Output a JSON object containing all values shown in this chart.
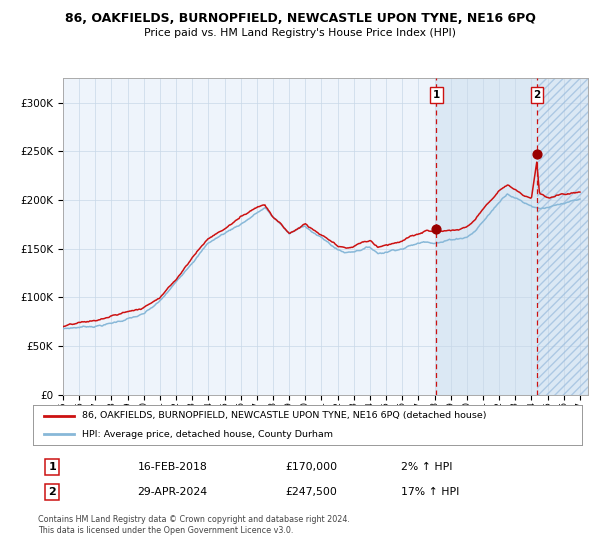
{
  "title": "86, OAKFIELDS, BURNOPFIELD, NEWCASTLE UPON TYNE, NE16 6PQ",
  "subtitle": "Price paid vs. HM Land Registry's House Price Index (HPI)",
  "legend_line1": "86, OAKFIELDS, BURNOPFIELD, NEWCASTLE UPON TYNE, NE16 6PQ (detached house)",
  "legend_line2": "HPI: Average price, detached house, County Durham",
  "ann1_date": "16-FEB-2018",
  "ann1_price": "£170,000",
  "ann1_pct": "2% ↑ HPI",
  "ann2_date": "29-APR-2024",
  "ann2_price": "£247,500",
  "ann2_pct": "17% ↑ HPI",
  "footer": "Contains HM Land Registry data © Crown copyright and database right 2024.\nThis data is licensed under the Open Government Licence v3.0.",
  "hpi_color": "#88b8d8",
  "price_color": "#cc1111",
  "marker_color": "#990000",
  "vline_color": "#cc1111",
  "plot_bg": "#eef4fb",
  "ylim": [
    0,
    325000
  ],
  "yticks": [
    0,
    50000,
    100000,
    150000,
    200000,
    250000,
    300000
  ],
  "xlim_start": 1995.0,
  "xlim_end": 2027.5,
  "sale1_x": 2018.12,
  "sale1_y": 170000,
  "sale2_x": 2024.33,
  "sale2_y": 247500,
  "hpi_keypoints_x": [
    1995.0,
    1996.0,
    1997.0,
    1998.0,
    1999.0,
    2000.0,
    2001.0,
    2002.0,
    2003.0,
    2004.0,
    2005.0,
    2006.0,
    2007.0,
    2007.5,
    2008.0,
    2008.5,
    2009.0,
    2009.5,
    2010.0,
    2010.5,
    2011.0,
    2011.5,
    2012.0,
    2012.5,
    2013.0,
    2013.5,
    2014.0,
    2014.5,
    2015.0,
    2015.5,
    2016.0,
    2016.5,
    2017.0,
    2017.5,
    2018.0,
    2018.5,
    2019.0,
    2019.5,
    2020.0,
    2020.5,
    2021.0,
    2021.5,
    2022.0,
    2022.5,
    2023.0,
    2023.5,
    2024.0,
    2024.5,
    2025.0,
    2025.5,
    2026.0,
    2026.5,
    2027.0
  ],
  "hpi_keypoints_y": [
    68000,
    70000,
    72000,
    75000,
    80000,
    84000,
    96000,
    115000,
    138000,
    158000,
    168000,
    178000,
    190000,
    195000,
    185000,
    178000,
    168000,
    172000,
    176000,
    170000,
    164000,
    158000,
    152000,
    149000,
    151000,
    154000,
    156000,
    150000,
    152000,
    155000,
    157000,
    160000,
    162000,
    165000,
    165000,
    166000,
    168000,
    170000,
    172000,
    178000,
    188000,
    198000,
    208000,
    218000,
    215000,
    210000,
    207000,
    205000,
    207000,
    208000,
    209000,
    210000,
    211000
  ],
  "price_keypoints_x": [
    1995.0,
    1996.0,
    1997.0,
    1998.0,
    1999.0,
    2000.0,
    2001.0,
    2002.0,
    2003.0,
    2004.0,
    2005.0,
    2006.0,
    2007.0,
    2007.5,
    2008.0,
    2008.5,
    2009.0,
    2009.5,
    2010.0,
    2010.5,
    2011.0,
    2011.5,
    2012.0,
    2012.5,
    2013.0,
    2013.5,
    2014.0,
    2014.5,
    2015.0,
    2015.5,
    2016.0,
    2016.5,
    2017.0,
    2017.5,
    2018.0,
    2018.12,
    2018.5,
    2019.0,
    2019.5,
    2020.0,
    2020.5,
    2021.0,
    2021.5,
    2022.0,
    2022.5,
    2023.0,
    2023.5,
    2024.0,
    2024.33,
    2024.5,
    2025.0,
    2025.5,
    2026.0,
    2026.5,
    2027.0
  ],
  "price_keypoints_y": [
    70000,
    72000,
    74000,
    78000,
    83000,
    87000,
    100000,
    119000,
    143000,
    163000,
    173000,
    185000,
    197000,
    200000,
    188000,
    182000,
    171000,
    176000,
    181000,
    174000,
    168000,
    162000,
    155000,
    152000,
    154000,
    158000,
    160000,
    153000,
    156000,
    159000,
    161000,
    165000,
    167000,
    170000,
    168000,
    170000,
    170000,
    172000,
    174000,
    176000,
    183000,
    194000,
    204000,
    215000,
    222000,
    218000,
    213000,
    210000,
    247500,
    215000,
    212000,
    213000,
    214000,
    215000,
    216000
  ]
}
